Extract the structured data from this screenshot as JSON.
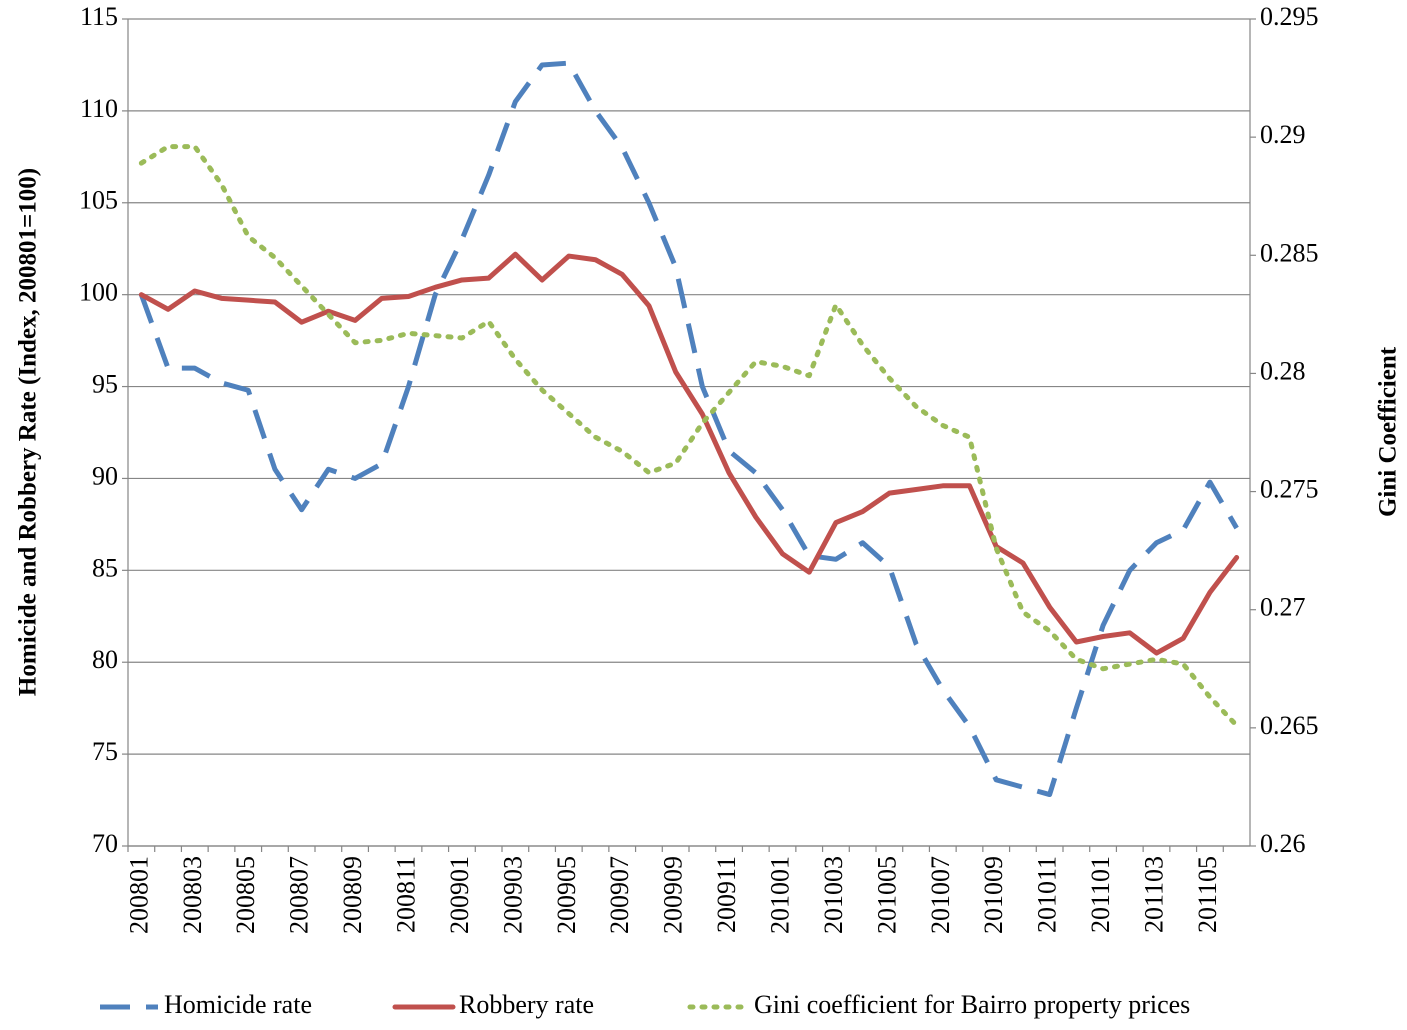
{
  "chart_data": {
    "type": "line",
    "y_label": "Homicide and Robbery Rate (Index, 200801=100)",
    "y2_label": "Gini Coefficient",
    "categories": [
      "200801",
      null,
      "200803",
      null,
      "200805",
      null,
      "200807",
      null,
      "200809",
      null,
      "200811",
      null,
      "200901",
      null,
      "200903",
      null,
      "200905",
      null,
      "200907",
      null,
      "200909",
      null,
      "200911",
      null,
      "201001",
      null,
      "201003",
      null,
      "201005",
      null,
      "201007",
      null,
      "201009",
      null,
      "201011",
      null,
      "201101",
      null,
      "201103",
      null,
      "201105",
      null
    ],
    "series": [
      {
        "name": "Homicide rate",
        "color": "#4f81bd",
        "dash": "dashed",
        "values": [
          100,
          96,
          96,
          95.2,
          94.8,
          90.5,
          88.3,
          90.5,
          90,
          90.8,
          95,
          100,
          103,
          106.5,
          110.5,
          112.5,
          112.6,
          110,
          108,
          105,
          101.5,
          95,
          91.5,
          90.3,
          88.3,
          85.8,
          85.6,
          86.5,
          85.2,
          81,
          78.5,
          76.5,
          73.6,
          73.2,
          72.8,
          77.5,
          82,
          85,
          86.5,
          87.2,
          89.8,
          87.3
        ]
      },
      {
        "name": "Robbery rate",
        "color": "#c0504d",
        "dash": "solid",
        "values": [
          100,
          99.2,
          100.2,
          99.8,
          99.7,
          99.6,
          98.5,
          99.1,
          98.6,
          99.8,
          99.9,
          100.4,
          100.8,
          100.9,
          102.2,
          100.8,
          102.1,
          101.9,
          101.1,
          99.4,
          95.8,
          93.5,
          90.3,
          87.9,
          85.9,
          84.9,
          87.6,
          88.2,
          89.2,
          89.4,
          89.6,
          89.6,
          86.3,
          85.4,
          83,
          81.1,
          81.4,
          81.6,
          80.5,
          81.3,
          83.8,
          85.7
        ]
      },
      {
        "name": "Gini coefficient for Bairro property prices",
        "color": "#9bbb59",
        "dash": "dotted",
        "axis": "y2",
        "values": [
          0.2889,
          0.2896,
          0.2896,
          0.288,
          0.2858,
          0.2849,
          0.2837,
          0.2825,
          0.2813,
          0.2814,
          0.2817,
          0.2816,
          0.2815,
          0.2822,
          0.2806,
          0.2793,
          0.2783,
          0.2773,
          0.2767,
          0.2758,
          0.2762,
          0.2779,
          0.2792,
          0.2805,
          0.2803,
          0.2799,
          0.2829,
          0.2812,
          0.2798,
          0.2786,
          0.2778,
          0.2773,
          0.2726,
          0.2699,
          0.2691,
          0.2679,
          0.2675,
          0.2677,
          0.2679,
          0.2677,
          0.2663,
          0.2651
        ]
      }
    ],
    "ylim": [
      70,
      115
    ],
    "yticks": [
      70,
      75,
      80,
      85,
      90,
      95,
      100,
      105,
      110,
      115
    ],
    "y2lim": [
      0.26,
      0.295
    ],
    "y2ticks": [
      0.26,
      0.265,
      0.27,
      0.275,
      0.28,
      0.285,
      0.29,
      0.295
    ],
    "grid": true,
    "legend": "bottom"
  }
}
